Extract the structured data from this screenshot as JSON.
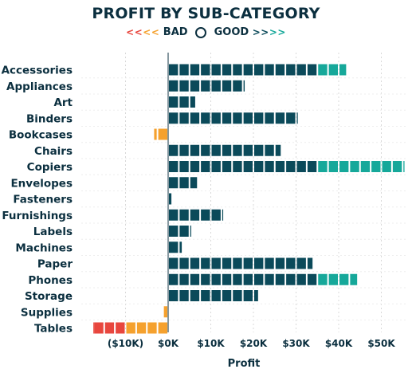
{
  "chart_data": {
    "type": "bar",
    "title": "PROFIT BY SUB-CATEGORY",
    "legend": {
      "bad_label": "BAD",
      "good_label": "GOOD",
      "bad_arrow": "<",
      "good_arrow": ">"
    },
    "xlabel": "Profit",
    "ylabel": "",
    "xlim": [
      -20000,
      56000
    ],
    "ticks": [
      -10000,
      0,
      10000,
      20000,
      30000,
      40000,
      50000
    ],
    "tick_labels": [
      "($10K)",
      "$0K",
      "$10K",
      "$20K",
      "$30K",
      "$40K",
      "$50K"
    ],
    "grid": true,
    "categories": [
      "Accessories",
      "Appliances",
      "Art",
      "Binders",
      "Bookcases",
      "Chairs",
      "Copiers",
      "Envelopes",
      "Fasteners",
      "Furnishings",
      "Labels",
      "Machines",
      "Paper",
      "Phones",
      "Storage",
      "Supplies",
      "Tables"
    ],
    "values": [
      41937,
      18138,
      6528,
      30222,
      -3473,
      26590,
      55618,
      6964,
      950,
      13059,
      5546,
      3385,
      34054,
      44516,
      21279,
      -1189,
      -17725
    ],
    "colors": {
      "base": "#0b4a5a",
      "good": "#16a89a",
      "bad_light": "#f5a12e",
      "bad_dark": "#e8463e",
      "text": "#0b2f3f",
      "grid": "#d8d8d8"
    }
  }
}
